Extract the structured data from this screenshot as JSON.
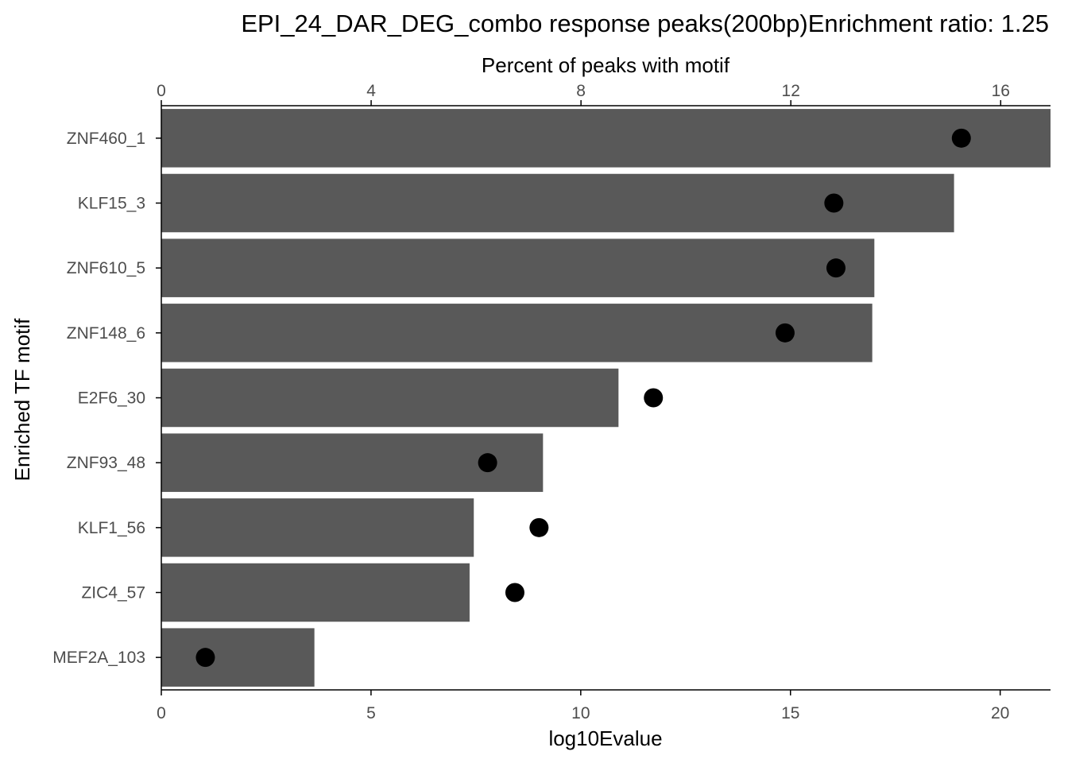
{
  "chart_data": {
    "type": "bar",
    "title": "EPI_24_DAR_DEG_combo response peaks(200bp)Enrichment ratio: 1.25",
    "xlabel": "log10Evalue",
    "x2label": "Percent of peaks with motif",
    "ylabel": "Enriched TF motif",
    "categories": [
      "ZNF460_1",
      "KLF15_3",
      "ZNF610_5",
      "ZNF148_6",
      "E2F6_30",
      "ZNF93_48",
      "KLF1_56",
      "ZIC4_57",
      "MEF2A_103"
    ],
    "series": [
      {
        "values": [
          21.2,
          18.9,
          17.0,
          16.95,
          10.9,
          9.1,
          7.45,
          7.35,
          3.65
        ]
      }
    ],
    "points_percent": [
      15.25,
      12.82,
      12.86,
      11.89,
      9.38,
      6.22,
      7.2,
      6.74,
      0.84
    ],
    "xlim": [
      0,
      21.2
    ],
    "x_ticks": [
      0,
      5,
      10,
      15,
      20
    ],
    "x2lim": [
      0,
      16.95
    ],
    "x2_ticks": [
      0,
      4,
      8,
      12,
      16
    ],
    "grid": false,
    "colors": {
      "bar": "#595959",
      "point": "#000000",
      "axis": "#000000"
    }
  }
}
